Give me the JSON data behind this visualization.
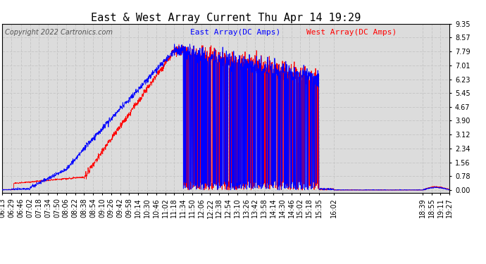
{
  "title": "East & West Array Current Thu Apr 14 19:29",
  "copyright": "Copyright 2022 Cartronics.com",
  "legend_east": "East Array(DC Amps)",
  "legend_west": "West Array(DC Amps)",
  "east_color": "#0000ff",
  "west_color": "#ff0000",
  "bg_color": "#ffffff",
  "grid_color": "#c8c8c8",
  "plot_bg_color": "#dcdcdc",
  "ymin": -0.15,
  "ymax": 9.35,
  "yticks": [
    0.0,
    0.78,
    1.56,
    2.34,
    3.12,
    3.9,
    4.67,
    5.45,
    6.23,
    7.01,
    7.79,
    8.57,
    9.35
  ],
  "title_fontsize": 11,
  "label_fontsize": 8,
  "tick_fontsize": 7,
  "copyright_fontsize": 7,
  "n_points": 2000
}
